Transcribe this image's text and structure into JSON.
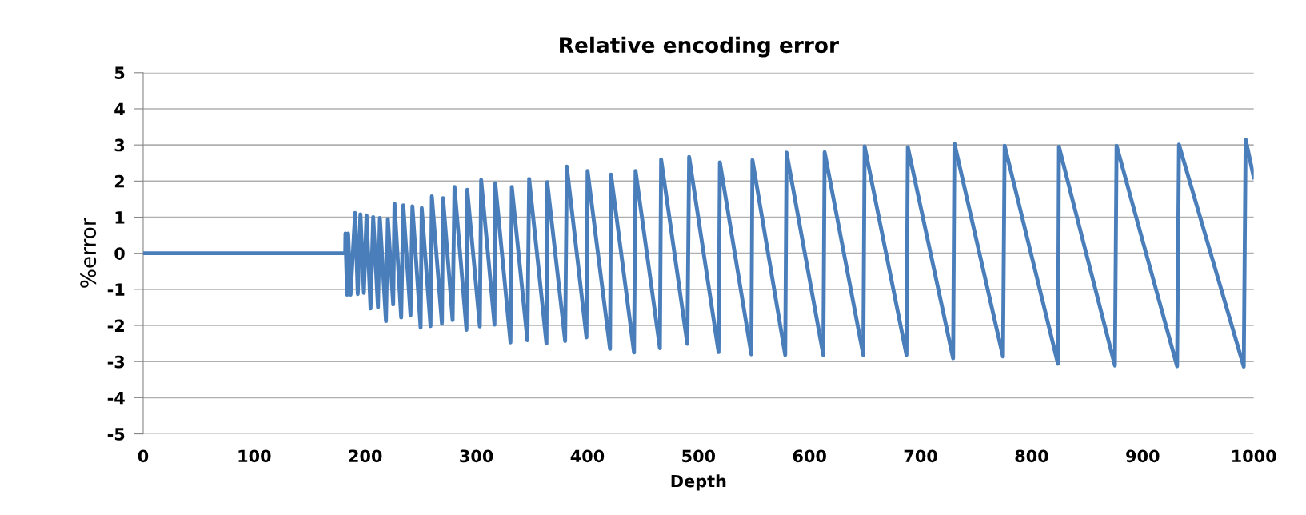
{
  "chart_data": {
    "type": "line",
    "title": "Relative encoding error",
    "xlabel": "Depth",
    "ylabel": "%error",
    "xlim": [
      0,
      1000
    ],
    "xticks": [
      0,
      100,
      200,
      300,
      400,
      500,
      600,
      700,
      800,
      900,
      1000
    ],
    "ylim": [
      -5,
      5
    ],
    "yticks": [
      -5,
      -4,
      -3,
      -2,
      -1,
      0,
      1,
      2,
      3,
      4,
      5
    ],
    "grid": "y",
    "marker": "none",
    "line_style": "solid",
    "series": [
      {
        "color": "#4a7ebb",
        "x": [
          0,
          182.0,
          182.2,
          183.7,
          184.6,
          186.8,
          190.9,
          193.3,
          195.7,
          198.8,
          201.2,
          204.8,
          207.2,
          211.5,
          213.2,
          218.7,
          220.4,
          225.2,
          226.4,
          232.4,
          234.3,
          240.8,
          242.5,
          249.9,
          250.9,
          258.8,
          260.0,
          269.1,
          270.1,
          278.7,
          280.4,
          291.2,
          291.9,
          303.2,
          304.4,
          316.4,
          317.1,
          330.8,
          332.0,
          346.0,
          347.6,
          363.2,
          363.9,
          380.0,
          381.5,
          399.2,
          400.2,
          420.4,
          421.3,
          442.0,
          443.4,
          465.3,
          466.4,
          490.0,
          491.6,
          518.1,
          519.3,
          547.6,
          548.6,
          578.1,
          579.3,
          612.4,
          613.6,
          648.4,
          649.6,
          687.3,
          688.5,
          729.3,
          730.5,
          774.2,
          775.7,
          823.7,
          824.6,
          875.0,
          876.5,
          931.0,
          932.7,
          991.0,
          992.7,
          1000
        ],
        "values": [
          0,
          0,
          0.55,
          -1.15,
          0.55,
          -1.15,
          1.12,
          -1.13,
          1.08,
          -1.1,
          1.05,
          -1.53,
          1.0,
          -1.5,
          0.98,
          -1.88,
          0.95,
          -1.42,
          1.38,
          -1.78,
          1.33,
          -1.72,
          1.3,
          -2.06,
          1.25,
          -2.02,
          1.58,
          -1.95,
          1.53,
          -1.85,
          1.84,
          -2.12,
          1.76,
          -2.03,
          2.03,
          -1.98,
          1.94,
          -2.47,
          1.84,
          -2.41,
          2.06,
          -2.5,
          1.97,
          -2.43,
          2.4,
          -2.33,
          2.28,
          -2.65,
          2.18,
          -2.75,
          2.28,
          -2.63,
          2.6,
          -2.51,
          2.67,
          -2.74,
          2.52,
          -2.8,
          2.58,
          -2.82,
          2.79,
          -2.82,
          2.8,
          -2.82,
          2.96,
          -2.82,
          2.94,
          -2.91,
          3.04,
          -2.86,
          2.98,
          -3.06,
          2.95,
          -3.11,
          2.98,
          -3.13,
          3.01,
          -3.14,
          3.15,
          2.1
        ]
      }
    ]
  }
}
